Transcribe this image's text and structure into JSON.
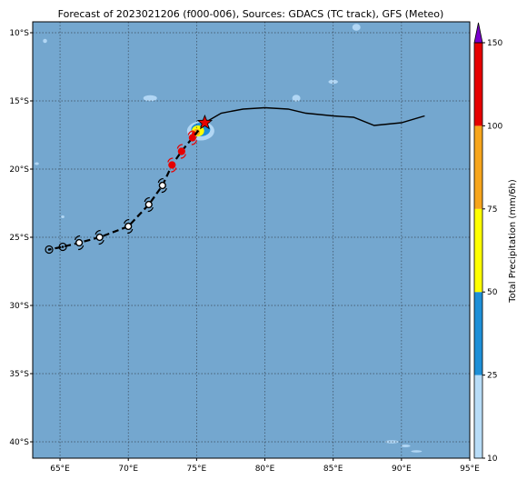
{
  "title": "Forecast of 2023021206 (f000-006), Sources: GDACS (TC track), GFS (Meteo)",
  "colorbar": {
    "label": "Total Precipitation (mm/6h)",
    "ticks": [
      "10",
      "25",
      "50",
      "75",
      "100",
      "150"
    ],
    "levels": [
      10,
      25,
      50,
      75,
      100,
      150
    ],
    "colors": [
      "#b8dcf7",
      "#1e8fd7",
      "#ffff00",
      "#f7a51c",
      "#e60000",
      "#7a00cc"
    ]
  },
  "chart_data": {
    "type": "scatter",
    "title": "Forecast of 2023021206 (f000-006), Sources: GDACS (TC track), GFS (Meteo)",
    "xlim": [
      63,
      95
    ],
    "ylim": [
      -41.2,
      -9.2
    ],
    "xticks": [
      65,
      70,
      75,
      80,
      85,
      90,
      95
    ],
    "xtick_labels": [
      "65°E",
      "70°E",
      "75°E",
      "80°E",
      "85°E",
      "90°E",
      "95°E"
    ],
    "yticks": [
      -10,
      -15,
      -20,
      -25,
      -30,
      -35,
      -40
    ],
    "ytick_labels": [
      "10°S",
      "15°S",
      "20°S",
      "25°S",
      "30°S",
      "35°S",
      "40°S"
    ],
    "grid": true,
    "past_track": [
      [
        91.7,
        -16.1
      ],
      [
        90.0,
        -16.6
      ],
      [
        88.0,
        -16.8
      ],
      [
        86.5,
        -16.2
      ],
      [
        85.0,
        -16.1
      ],
      [
        83.0,
        -15.9
      ],
      [
        81.7,
        -15.6
      ],
      [
        80.0,
        -15.5
      ],
      [
        78.4,
        -15.6
      ],
      [
        76.8,
        -15.9
      ],
      [
        75.6,
        -16.6
      ]
    ],
    "current_position": [
      75.6,
      -16.6
    ],
    "forecast_track": [
      [
        75.6,
        -16.6
      ],
      [
        74.7,
        -17.7
      ],
      [
        73.9,
        -18.7
      ],
      [
        73.2,
        -19.7
      ],
      [
        72.5,
        -21.2
      ],
      [
        71.5,
        -22.6
      ],
      [
        70.0,
        -24.2
      ],
      [
        67.9,
        -25.0
      ],
      [
        66.4,
        -25.4
      ],
      [
        65.2,
        -25.7
      ],
      [
        64.2,
        -25.9
      ]
    ],
    "forecast_markers": [
      {
        "lon": 74.7,
        "lat": -17.7,
        "symbol": "storm",
        "color": "#e60000"
      },
      {
        "lon": 73.9,
        "lat": -18.7,
        "symbol": "storm",
        "color": "#e60000"
      },
      {
        "lon": 73.2,
        "lat": -19.7,
        "symbol": "storm",
        "color": "#e60000"
      },
      {
        "lon": 72.5,
        "lat": -21.2,
        "symbol": "storm",
        "color": "#000000"
      },
      {
        "lon": 71.5,
        "lat": -22.6,
        "symbol": "storm",
        "color": "#000000"
      },
      {
        "lon": 70.0,
        "lat": -24.2,
        "symbol": "storm",
        "color": "#000000"
      },
      {
        "lon": 67.9,
        "lat": -25.0,
        "symbol": "storm",
        "color": "#000000"
      },
      {
        "lon": 66.4,
        "lat": -25.4,
        "symbol": "storm",
        "color": "#000000"
      },
      {
        "lon": 65.2,
        "lat": -25.7,
        "symbol": "low",
        "color": "#000000"
      },
      {
        "lon": 64.2,
        "lat": -25.9,
        "symbol": "low",
        "color": "#000000"
      }
    ],
    "precip_patches": [
      {
        "lon": 75.3,
        "lat": -17.2,
        "rx": 1.0,
        "ry": 0.7,
        "level": 10
      },
      {
        "lon": 75.3,
        "lat": -17.1,
        "rx": 0.7,
        "ry": 0.5,
        "level": 25
      },
      {
        "lon": 75.1,
        "lat": -17.2,
        "rx": 0.45,
        "ry": 0.4,
        "level": 50
      },
      {
        "lon": 75.0,
        "lat": -17.3,
        "rx": 0.25,
        "ry": 0.25,
        "level": 75
      },
      {
        "lon": 74.8,
        "lat": -17.4,
        "rx": 0.15,
        "ry": 0.18,
        "level": 100
      },
      {
        "lon": 71.6,
        "lat": -14.8,
        "rx": 0.5,
        "ry": 0.22,
        "level": 10
      },
      {
        "lon": 82.3,
        "lat": -14.8,
        "rx": 0.3,
        "ry": 0.25,
        "level": 10
      },
      {
        "lon": 85.0,
        "lat": -13.6,
        "rx": 0.35,
        "ry": 0.15,
        "level": 10
      },
      {
        "lon": 86.7,
        "lat": -9.6,
        "rx": 0.3,
        "ry": 0.25,
        "level": 10
      },
      {
        "lon": 63.9,
        "lat": -10.6,
        "rx": 0.15,
        "ry": 0.15,
        "level": 10
      },
      {
        "lon": 63.3,
        "lat": -19.6,
        "rx": 0.15,
        "ry": 0.1,
        "level": 10
      },
      {
        "lon": 65.2,
        "lat": -23.5,
        "rx": 0.12,
        "ry": 0.1,
        "level": 10
      },
      {
        "lon": 89.3,
        "lat": -40.0,
        "rx": 0.5,
        "ry": 0.12,
        "level": 10
      },
      {
        "lon": 90.3,
        "lat": -40.3,
        "rx": 0.35,
        "ry": 0.1,
        "level": 10
      },
      {
        "lon": 91.1,
        "lat": -40.7,
        "rx": 0.4,
        "ry": 0.08,
        "level": 10
      },
      {
        "lon": 81.0,
        "lat": -15.0,
        "rx": 0.05,
        "ry": 0.05,
        "level": 10
      }
    ]
  }
}
